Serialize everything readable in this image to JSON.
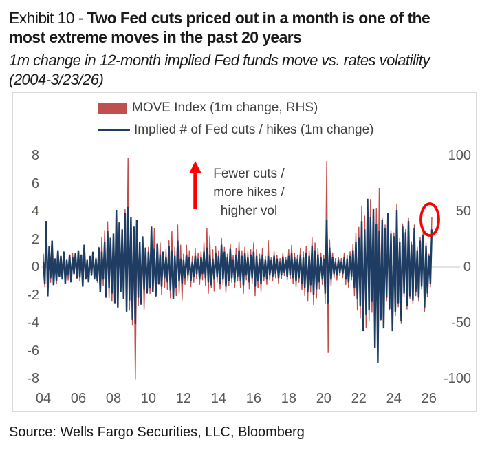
{
  "header": {
    "exhibit_prefix": "Exhibit 10 - ",
    "title": "Two Fed cuts priced out in a month is one of the most extreme moves in the past 20 years",
    "subtitle_line1": "1m change in 12-month implied Fed funds move vs. rates volatility",
    "subtitle_line2": "(2004-3/23/26)"
  },
  "legend": {
    "entries": [
      {
        "label": "MOVE Index (1m change, RHS)",
        "color": "#C0504D",
        "swatch": "bar"
      },
      {
        "label": "Implied # of Fed cuts / hikes (1m change)",
        "color": "#1F3D63",
        "swatch": "line"
      }
    ]
  },
  "annotation": {
    "lines": [
      "Fewer cuts /",
      "more hikes /",
      "higher vol"
    ],
    "arrow_color": "#FF0000"
  },
  "highlight": {
    "color": "#FF0000",
    "description": "Red circle around the latest (March 2026) spike"
  },
  "source": "Source: Wells Fargo Securities, LLC, Bloomberg",
  "chart_data": {
    "type": "line",
    "x_start": "2004-01",
    "x_end": "2026-03",
    "frequency": "monthly",
    "grid": false,
    "legend_position": "top-center-inside",
    "x_tick_labels": [
      "04",
      "06",
      "08",
      "10",
      "12",
      "14",
      "16",
      "18",
      "20",
      "22",
      "24",
      "26"
    ],
    "left_axis": {
      "label": "Implied # of Fed cuts / hikes (1m change)",
      "range": [
        -8,
        8
      ],
      "ticks": [
        8,
        6,
        4,
        2,
        0,
        -2,
        -4,
        -6,
        -8
      ]
    },
    "right_axis": {
      "label": "MOVE Index (1m change, RHS)",
      "range": [
        -100,
        100
      ],
      "ticks": [
        100,
        50,
        0,
        -50,
        -100
      ]
    },
    "series": [
      {
        "name": "MOVE Index (1m change, RHS)",
        "axis": "right",
        "color": "#C0504D",
        "values": [
          12,
          -18,
          24,
          -16,
          10,
          -14,
          19,
          -12,
          8,
          -15,
          11,
          -9,
          8,
          -11,
          14,
          -9,
          7,
          -12,
          10,
          -8,
          13,
          -7,
          9,
          -11,
          10,
          -13,
          8,
          -10,
          15,
          -9,
          7,
          -12,
          9,
          -8,
          11,
          -10,
          9,
          -14,
          18,
          -22,
          27,
          -17,
          33,
          -24,
          41,
          -28,
          24,
          -31,
          28,
          -24,
          46,
          -30,
          24,
          -21,
          32,
          -27,
          52,
          -34,
          98,
          -39,
          44,
          -52,
          30,
          -101,
          26,
          -35,
          20,
          -28,
          16,
          -38,
          16,
          -22,
          18,
          -24,
          30,
          -21,
          35,
          -27,
          19,
          -16,
          22,
          -25,
          14,
          -19,
          16,
          -21,
          24,
          -28,
          32,
          -22,
          18,
          -26,
          38,
          -24,
          20,
          -30,
          12,
          -16,
          20,
          -13,
          15,
          -18,
          10,
          -14,
          17,
          -11,
          13,
          -16,
          14,
          -12,
          22,
          -17,
          35,
          -24,
          28,
          -19,
          16,
          -22,
          19,
          -14,
          15,
          -20,
          26,
          -16,
          18,
          -23,
          12,
          -17,
          21,
          -14,
          11,
          -19,
          17,
          -13,
          23,
          -19,
          15,
          -24,
          18,
          -12,
          14,
          -20,
          16,
          -15,
          22,
          -26,
          16,
          -19,
          12,
          -22,
          17,
          -13,
          10,
          -16,
          24,
          -12,
          9,
          -13,
          14,
          -10,
          11,
          -15,
          8,
          -11,
          13,
          -8,
          9,
          -12,
          16,
          -11,
          20,
          -15,
          13,
          -18,
          11,
          -14,
          17,
          -21,
          14,
          -26,
          19,
          -31,
          15,
          -23,
          27,
          -34,
          22,
          -28,
          17,
          -20,
          13,
          -16,
          11,
          -33,
          95,
          -77,
          25,
          -17,
          13,
          -10,
          8,
          -12,
          9,
          -8,
          8,
          -10,
          13,
          -16,
          11,
          -19,
          14,
          -12,
          21,
          -26,
          31,
          -39,
          36,
          -46,
          55,
          -42,
          46,
          -55,
          58,
          -49,
          61,
          -41,
          51,
          -63,
          53,
          -58,
          71,
          -48,
          44,
          -52,
          38,
          -31,
          47,
          -39,
          33,
          -49,
          31,
          -44,
          57,
          -36,
          26,
          -51,
          39,
          -27,
          34,
          -38,
          44,
          -29,
          23,
          -33,
          38,
          -26,
          18,
          -31,
          27,
          -20,
          32,
          -40,
          22,
          -27,
          12,
          -18,
          45
        ]
      },
      {
        "name": "Implied # of Fed cuts / hikes (1m change)",
        "axis": "left",
        "color": "#1F3D63",
        "values": [
          0.4,
          -1.2,
          3.3,
          -2.1,
          1.5,
          -0.8,
          1.9,
          -1.3,
          0.6,
          -1.0,
          1.2,
          -0.7,
          0.8,
          -0.9,
          1.1,
          -1.2,
          0.5,
          -0.6,
          0.9,
          -1.1,
          0.7,
          -0.5,
          1.0,
          -0.8,
          1.2,
          -0.7,
          0.9,
          -1.4,
          1.6,
          -0.9,
          0.5,
          -1.1,
          0.8,
          -0.6,
          1.1,
          -0.9,
          0.6,
          -1.0,
          1.4,
          -1.8,
          1.1,
          -0.9,
          1.8,
          -2.2,
          2.6,
          -1.5,
          2.1,
          -1.9,
          2.4,
          -2.6,
          4.1,
          -2.9,
          3.2,
          -1.8,
          2.7,
          -2.3,
          3.9,
          -3.2,
          4.3,
          -2.4,
          3.6,
          -3.8,
          2.9,
          -4.1,
          3.4,
          -2.2,
          1.8,
          -2.7,
          2.2,
          -1.6,
          1.4,
          -1.9,
          1.1,
          -1.5,
          2.9,
          -1.8,
          1.3,
          -2.1,
          1.7,
          -1.2,
          0.9,
          -1.4,
          1.1,
          -0.8,
          0.7,
          -1.1,
          1.5,
          -1.7,
          1.2,
          -2.3,
          0.8,
          -1.5,
          1.9,
          -1.0,
          0.6,
          -1.2,
          0.5,
          -0.8,
          0.9,
          -0.6,
          0.7,
          -1.0,
          0.4,
          -0.7,
          0.8,
          -0.5,
          0.6,
          -0.9,
          0.7,
          -0.5,
          1.1,
          -0.8,
          1.4,
          -1.1,
          0.9,
          -1.3,
          0.6,
          -0.9,
          1.0,
          -0.7,
          0.8,
          -1.2,
          1.6,
          -0.9,
          1.1,
          -1.4,
          0.7,
          -1.0,
          1.3,
          -0.8,
          0.5,
          -1.1,
          0.9,
          -0.7,
          1.2,
          -1.0,
          0.8,
          -1.3,
          1.0,
          -0.6,
          0.7,
          -1.1,
          0.9,
          -0.8,
          1.1,
          -1.4,
          0.8,
          -1.0,
          0.6,
          -1.2,
          0.9,
          -0.7,
          0.5,
          -0.9,
          0.8,
          -0.6,
          0.5,
          -0.7,
          0.8,
          -0.5,
          0.6,
          -0.8,
          0.4,
          -0.6,
          0.7,
          -0.4,
          0.5,
          -0.7,
          0.8,
          -0.6,
          1.0,
          -0.8,
          0.7,
          -1.0,
          0.6,
          -0.8,
          0.9,
          -1.2,
          0.7,
          -1.5,
          1.0,
          -1.8,
          0.8,
          -1.3,
          1.5,
          -2.0,
          1.2,
          -1.6,
          0.9,
          -1.1,
          0.7,
          -0.9,
          0.6,
          -1.9,
          3.4,
          -2.6,
          1.4,
          -0.9,
          0.7,
          -0.5,
          0.4,
          -0.6,
          0.5,
          -0.4,
          0.4,
          -0.5,
          0.7,
          -0.9,
          0.6,
          -1.1,
          0.8,
          -0.7,
          1.2,
          -1.5,
          1.8,
          -2.3,
          2.1,
          -2.8,
          3.3,
          -4.6,
          2.7,
          -3.4,
          4.9,
          -3.1,
          3.6,
          -2.5,
          4.2,
          -5.8,
          3.1,
          -6.9,
          2.6,
          -3.8,
          3.4,
          -4.4,
          2.8,
          -2.2,
          3.9,
          -3.0,
          2.4,
          -4.6,
          2.2,
          -3.2,
          4.1,
          -2.6,
          1.8,
          -3.9,
          2.9,
          -1.9,
          2.5,
          -2.8,
          3.3,
          -2.1,
          1.6,
          -2.4,
          2.8,
          -1.8,
          1.2,
          -2.2,
          1.9,
          -1.4,
          2.3,
          -2.9,
          1.5,
          -1.9,
          0.8,
          -1.2,
          2.7
        ]
      }
    ]
  }
}
